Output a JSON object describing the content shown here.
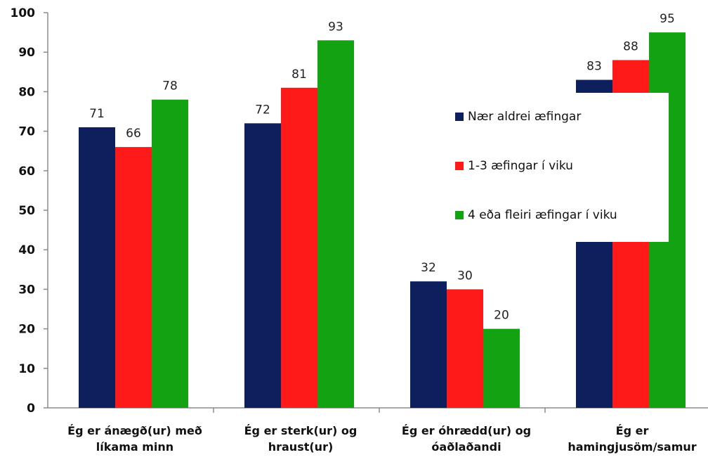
{
  "chart_data": {
    "type": "bar",
    "title": "",
    "xlabel": "",
    "ylabel": "",
    "ylim": [
      0,
      100
    ],
    "yticks": [
      0,
      10,
      20,
      30,
      40,
      50,
      60,
      70,
      80,
      90,
      100
    ],
    "grid": false,
    "legend_position": "right",
    "categories": [
      [
        "Ég er ánægð(ur) með",
        "líkama minn"
      ],
      [
        "Ég er sterk(ur) og",
        "hraust(ur)"
      ],
      [
        "Ég er óhrædd(ur) og",
        "óaðlaðandi"
      ],
      [
        "Ég er",
        "hamingjusöm/samur"
      ]
    ],
    "series": [
      {
        "name": "Nær aldrei æfingar",
        "color": "#0d1f5c",
        "values": [
          71,
          72,
          32,
          83
        ]
      },
      {
        "name": "1-3 æfingar í viku",
        "color": "#ff1a1a",
        "values": [
          66,
          81,
          30,
          88
        ]
      },
      {
        "name": "4 eða fleiri æfingar í viku",
        "color": "#12a212",
        "values": [
          78,
          93,
          20,
          95
        ]
      }
    ]
  }
}
